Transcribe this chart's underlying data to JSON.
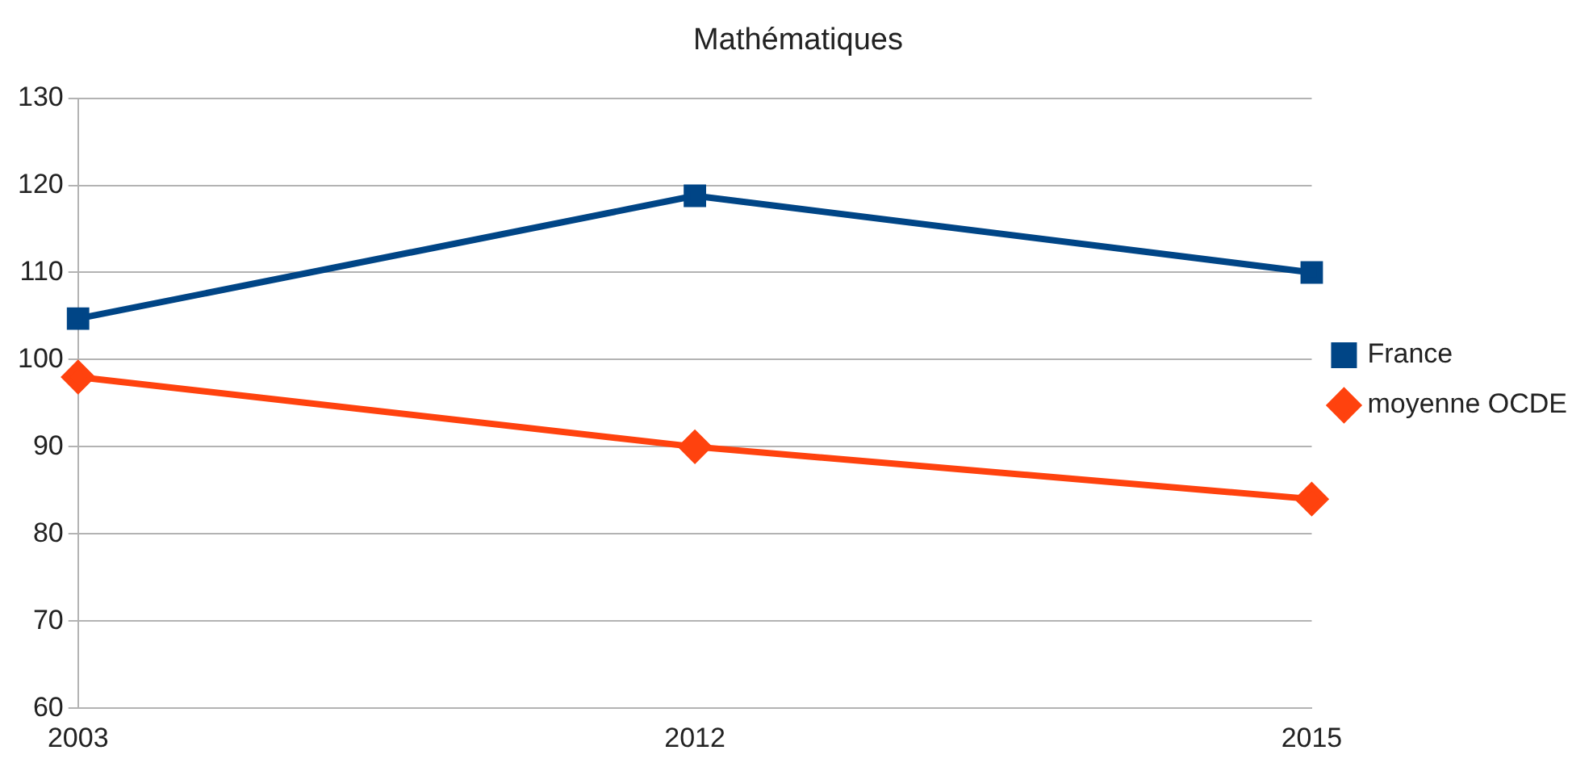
{
  "chart_data": {
    "type": "line",
    "title": "Mathématiques",
    "categories": [
      "2003",
      "2012",
      "2015"
    ],
    "series": [
      {
        "name": "France",
        "color": "#004586",
        "values": [
          104.7,
          118.8,
          110
        ],
        "marker": "square"
      },
      {
        "name": "moyenne OCDE",
        "color": "#ff420e",
        "values": [
          98,
          90,
          84
        ],
        "marker": "diamond"
      }
    ],
    "ylim": [
      60,
      130
    ],
    "yticks": [
      60,
      70,
      80,
      90,
      100,
      110,
      120,
      130
    ],
    "grid": "y",
    "legend": "right",
    "line_style": "solid"
  }
}
